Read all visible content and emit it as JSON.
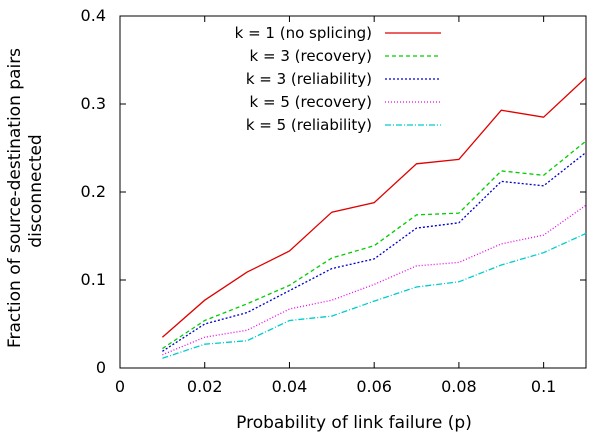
{
  "chart_data": {
    "type": "line",
    "title": "",
    "xlabel": "Probability of link failure (p)",
    "ylabel_lines": [
      "Fraction of source-destination pairs",
      "disconnected"
    ],
    "xlim": [
      0,
      0.11
    ],
    "ylim": [
      0,
      0.4
    ],
    "xticks": [
      "0",
      "0.02",
      "0.04",
      "0.06",
      "0.08",
      "0.1"
    ],
    "xtick_values": [
      0,
      0.02,
      0.04,
      0.06,
      0.08,
      0.1
    ],
    "yticks": [
      "0",
      "0.1",
      "0.2",
      "0.3",
      "0.4"
    ],
    "ytick_values": [
      0,
      0.1,
      0.2,
      0.3,
      0.4
    ],
    "grid": false,
    "legend_position": "top-right",
    "x": [
      0.01,
      0.02,
      0.03,
      0.04,
      0.05,
      0.06,
      0.07,
      0.08,
      0.09,
      0.1,
      0.11
    ],
    "series": [
      {
        "name": "k = 1 (no splicing)",
        "color": "#e00000",
        "dash": "",
        "values": [
          0.035,
          0.077,
          0.109,
          0.133,
          0.177,
          0.188,
          0.232,
          0.237,
          0.293,
          0.285,
          0.33
        ]
      },
      {
        "name": "k = 3 (recovery)",
        "color": "#00cc00",
        "dash": "4,3",
        "values": [
          0.022,
          0.054,
          0.073,
          0.094,
          0.125,
          0.139,
          0.174,
          0.176,
          0.224,
          0.219,
          0.258
        ]
      },
      {
        "name": "k = 3 (reliability)",
        "color": "#0000cc",
        "dash": "2,2",
        "values": [
          0.019,
          0.05,
          0.063,
          0.088,
          0.113,
          0.124,
          0.159,
          0.165,
          0.212,
          0.207,
          0.245
        ]
      },
      {
        "name": "k = 5 (recovery)",
        "color": "#ee00ee",
        "dash": "1,2",
        "values": [
          0.015,
          0.035,
          0.043,
          0.067,
          0.077,
          0.095,
          0.116,
          0.12,
          0.141,
          0.151,
          0.185
        ]
      },
      {
        "name": "k = 5 (reliability)",
        "color": "#00cccc",
        "dash": "6,2,1,2",
        "values": [
          0.011,
          0.027,
          0.031,
          0.054,
          0.059,
          0.076,
          0.092,
          0.098,
          0.117,
          0.131,
          0.153
        ]
      }
    ]
  }
}
